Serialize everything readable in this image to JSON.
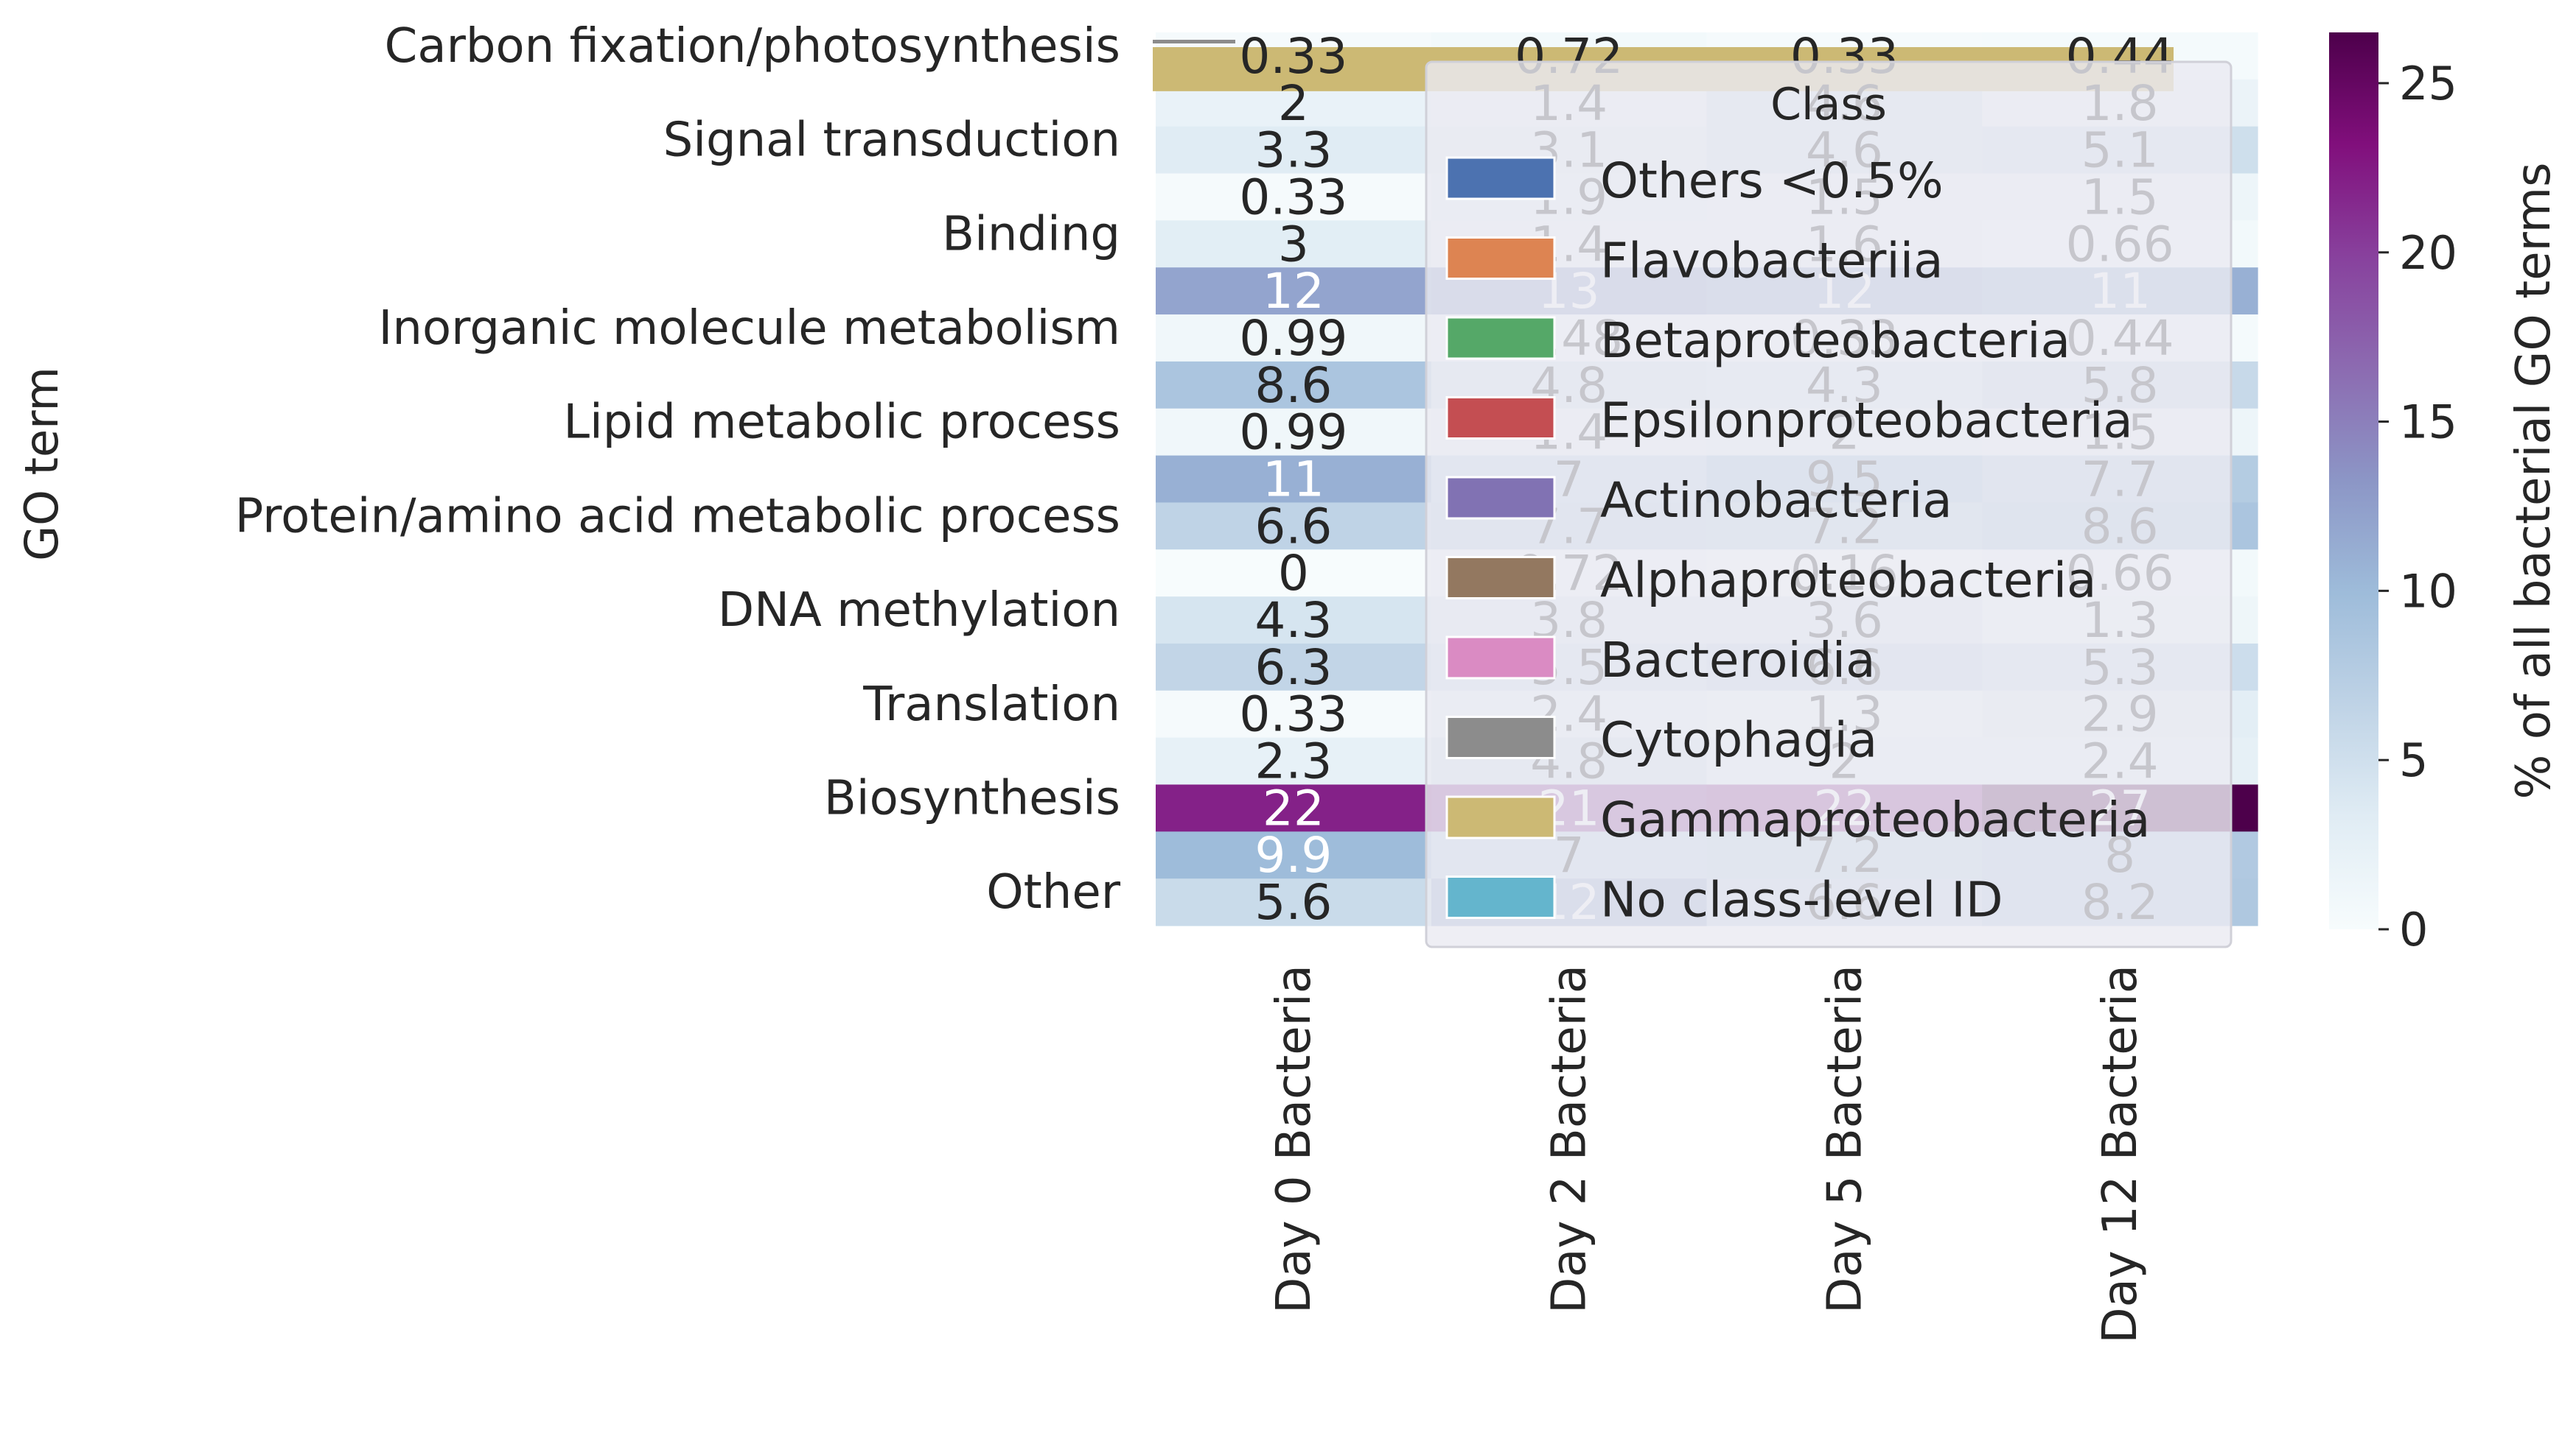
{
  "chart_data": {
    "type": "heatmap",
    "ylabel": "GO term",
    "y_tick_labels": [
      "Carbon fixation/photosynthesis",
      "Signal transduction",
      "Binding",
      "Inorganic molecule metabolism",
      "Lipid metabolic process",
      "Protein/amino acid metabolic process",
      "DNA methylation",
      "Translation",
      "Biosynthesis",
      "Other"
    ],
    "y_tick_row_index": [
      0,
      2,
      4,
      6,
      8,
      10,
      12,
      14,
      16,
      18
    ],
    "columns": [
      "Day 0 Bacteria",
      "Day 2 Bacteria",
      "Day 5 Bacteria",
      "Day 12 Bacteria"
    ],
    "values": [
      [
        0.33,
        0.72,
        0.33,
        0.44
      ],
      [
        2,
        1.4,
        4.6,
        1.8
      ],
      [
        3.3,
        3.1,
        4.6,
        5.1
      ],
      [
        0.33,
        1.9,
        1.5,
        1.5
      ],
      [
        3,
        1.4,
        1.6,
        0.66
      ],
      [
        12,
        13,
        12,
        11
      ],
      [
        0.99,
        0.48,
        0.33,
        0.44
      ],
      [
        8.6,
        4.8,
        4.3,
        5.8
      ],
      [
        0.99,
        1.4,
        2,
        1.5
      ],
      [
        11,
        7,
        9.5,
        7.7
      ],
      [
        6.6,
        7.7,
        7.2,
        8.6
      ],
      [
        0,
        0.72,
        0.16,
        0.66
      ],
      [
        4.3,
        3.8,
        3.6,
        1.3
      ],
      [
        6.3,
        5.5,
        6.6,
        5.3
      ],
      [
        0.33,
        2.4,
        1.3,
        2.9
      ],
      [
        2.3,
        4.8,
        2,
        2.4
      ],
      [
        22,
        21,
        22,
        27
      ],
      [
        9.9,
        7,
        7.2,
        8
      ],
      [
        5.6,
        12,
        6.6,
        8.2
      ]
    ],
    "colorbar": {
      "label": "% of all bacterial GO terms",
      "ticks": [
        0,
        5,
        10,
        15,
        20,
        25
      ],
      "range": [
        0,
        26.5
      ]
    },
    "legend": {
      "title": "Class",
      "placement": "upper-center overlay",
      "entries": [
        {
          "label": "Others <0.5%",
          "color": "#4c72b0"
        },
        {
          "label": "Flavobacteriia",
          "color": "#dd8452"
        },
        {
          "label": "Betaproteobacteria",
          "color": "#55a868"
        },
        {
          "label": "Epsilonproteobacteria",
          "color": "#c44e52"
        },
        {
          "label": "Actinobacteria",
          "color": "#8172b3"
        },
        {
          "label": "Alphaproteobacteria",
          "color": "#937860"
        },
        {
          "label": "Bacteroidia",
          "color": "#da8bc3"
        },
        {
          "label": "Cytophagia",
          "color": "#8c8c8c"
        },
        {
          "label": "Gammaproteobacteria",
          "color": "#ccb974"
        },
        {
          "label": "No class-level ID",
          "color": "#64b5cd"
        }
      ]
    },
    "top_row_overlay_bar_color": "#ccb974"
  }
}
